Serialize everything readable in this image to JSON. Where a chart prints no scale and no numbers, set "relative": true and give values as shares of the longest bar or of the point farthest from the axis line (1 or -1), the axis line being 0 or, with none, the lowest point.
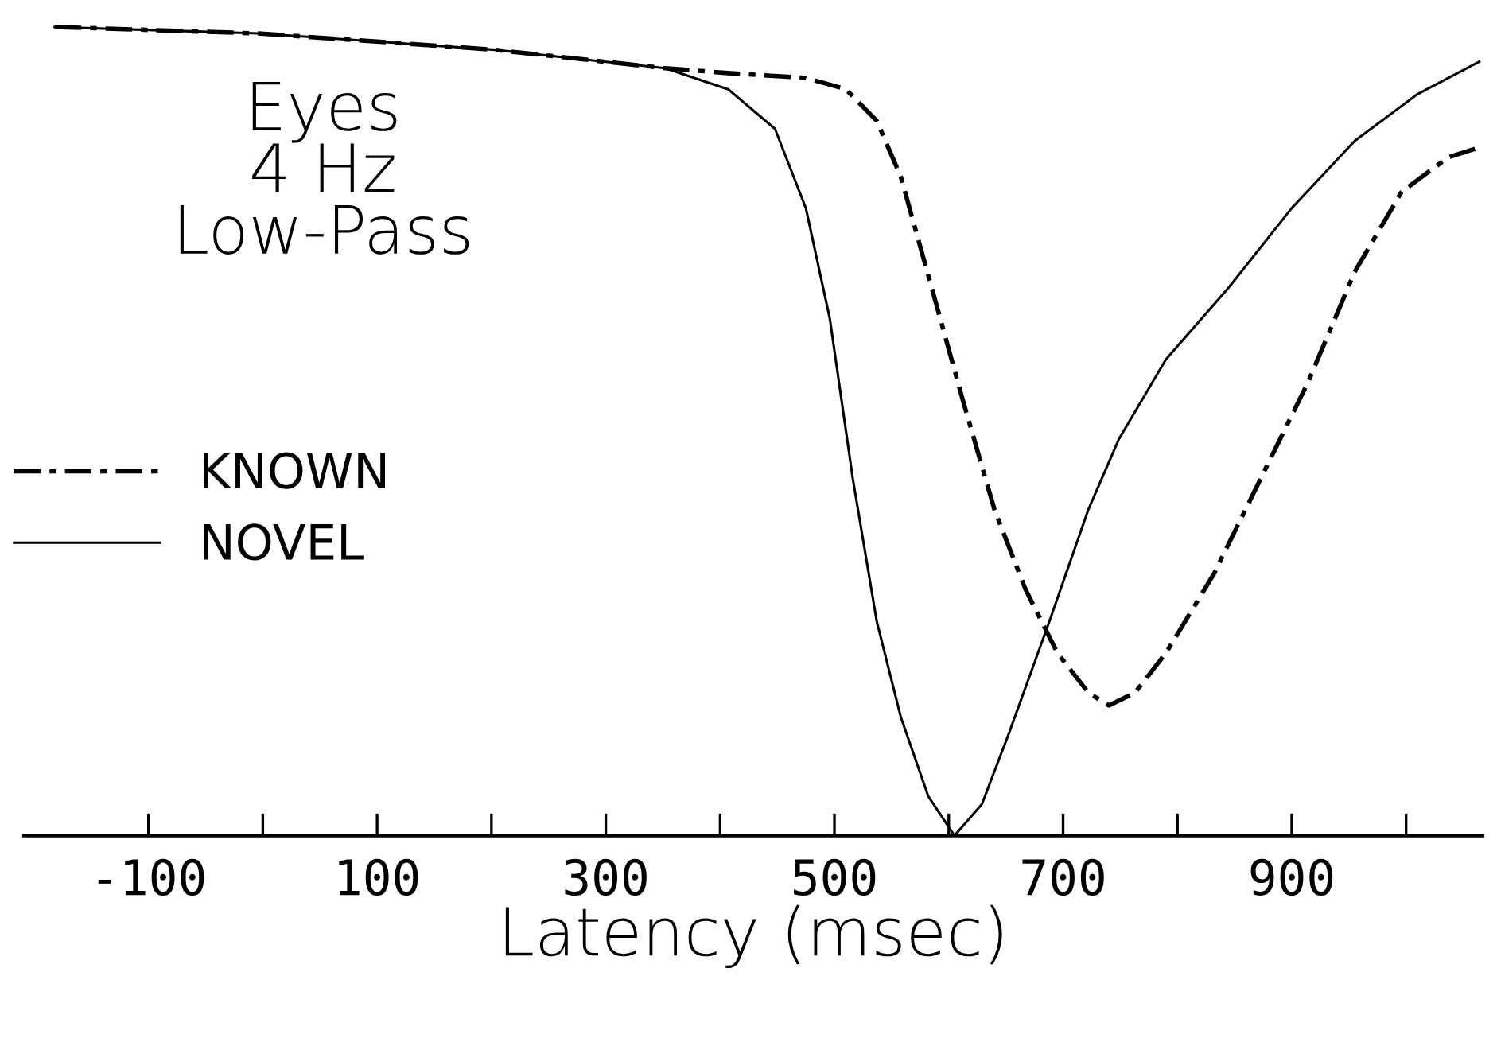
{
  "chart_data": {
    "type": "line",
    "relative": true,
    "xlabel": "Latency (msec)",
    "annotations": [
      "Eyes\n4 Hz\nLow-Pass"
    ],
    "xlim": [
      -209,
      1067
    ],
    "xticks": [
      -100,
      {
        "value": 0,
        "label": null
      },
      100,
      {
        "value": 200,
        "label": null
      },
      300,
      {
        "value": 400,
        "label": null
      },
      500,
      {
        "value": 600,
        "label": null
      },
      700,
      {
        "value": 800,
        "label": null
      },
      900,
      {
        "value": 1000,
        "label": null
      }
    ],
    "legend": "left",
    "grid": false,
    "series": [
      {
        "name": "KNOWN",
        "color": "#000000",
        "line_style": "dashed",
        "x": [
          -182,
          -4,
          201,
          352,
          407,
          475,
          510,
          537,
          558,
          585,
          612,
          640,
          667,
          695,
          722,
          740,
          763,
          790,
          832,
          873,
          914,
          955,
          996,
          1037,
          1064
        ],
        "values": [
          1.0,
          0.992,
          0.972,
          0.949,
          0.943,
          0.937,
          0.923,
          0.884,
          0.815,
          0.678,
          0.54,
          0.403,
          0.305,
          0.226,
          0.177,
          0.161,
          0.177,
          0.226,
          0.324,
          0.442,
          0.56,
          0.697,
          0.796,
          0.839,
          0.851
        ]
      },
      {
        "name": "NOVEL",
        "color": "#000000",
        "line_style": "solid",
        "x": [
          -182,
          -4,
          201,
          352,
          407,
          448,
          475,
          496,
          516,
          537,
          558,
          582,
          605,
          629,
          653,
          688,
          722,
          749,
          790,
          845,
          900,
          955,
          1010,
          1064
        ],
        "values": [
          1.0,
          0.992,
          0.972,
          0.949,
          0.923,
          0.874,
          0.776,
          0.639,
          0.442,
          0.265,
          0.147,
          0.049,
          0.0,
          0.039,
          0.128,
          0.265,
          0.403,
          0.491,
          0.589,
          0.678,
          0.776,
          0.859,
          0.917,
          0.957
        ]
      }
    ]
  }
}
